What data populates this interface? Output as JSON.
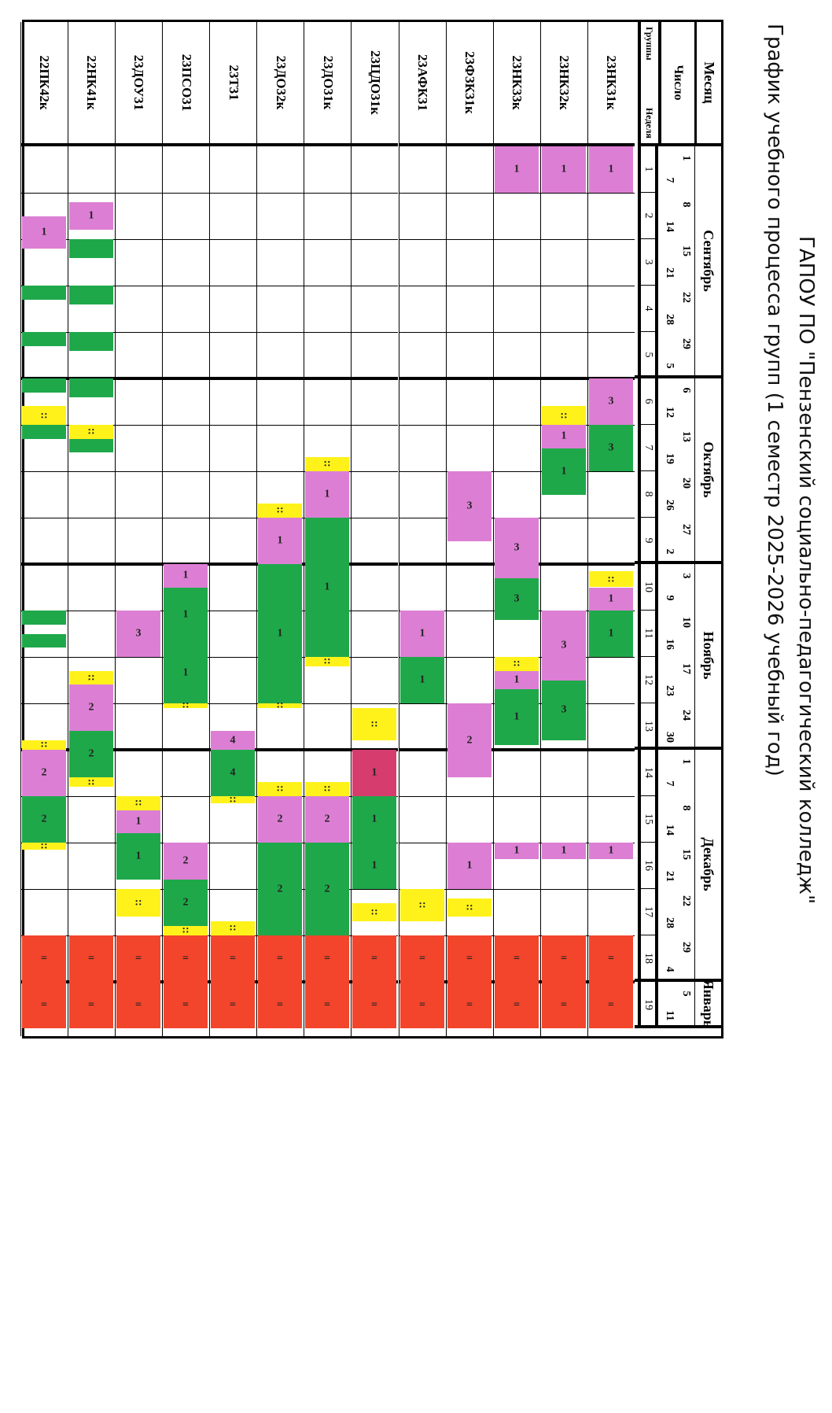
{
  "header": {
    "line1": "ГАПОУ ПО \"Пензенский социально-педагогический колледж\"",
    "line2": "График учебного процесса групп (1 семестр 2025-2026 учебный год)"
  },
  "table": {
    "month_label": "Месяц",
    "date_label": "Число",
    "groups_label": "Группы",
    "week_label": "Неделя",
    "months": [
      {
        "name": "Сентябрь",
        "from_week": 1,
        "to_week": 5
      },
      {
        "name": "Октябрь",
        "from_week": 6,
        "to_week": 9
      },
      {
        "name": "Ноябрь",
        "from_week": 10,
        "to_week": 13
      },
      {
        "name": "Декабрь",
        "from_week": 14,
        "to_week": 18
      },
      {
        "name": "Январь",
        "from_week": 19,
        "to_week": 19
      }
    ],
    "week_starts": [
      "1",
      "8",
      "15",
      "22",
      "29",
      "6",
      "13",
      "20",
      "27",
      "3",
      "10",
      "17",
      "24",
      "1",
      "8",
      "15",
      "22",
      "29",
      "5"
    ],
    "week_ends": [
      "7",
      "14",
      "21",
      "28",
      "5",
      "12",
      "19",
      "26",
      "2",
      "9",
      "16",
      "23",
      "30",
      "7",
      "14",
      "21",
      "28",
      "4",
      "11"
    ],
    "weeks": [
      "1",
      "2",
      "3",
      "4",
      "5",
      "6",
      "7",
      "8",
      "9",
      "10",
      "11",
      "12",
      "13",
      "14",
      "15",
      "16",
      "17",
      "18",
      "19"
    ]
  },
  "legend_colors": {
    "pink": "#dc7fd4",
    "green": "#1fa84a",
    "yellow": "#fff21a",
    "red": "#f2452c",
    "crimson": "#d63d6e"
  },
  "groups": [
    {
      "name": "23НК31к",
      "segments": [
        {
          "from": 1,
          "to": 2,
          "color": "pink",
          "text": "1"
        },
        {
          "from": 6,
          "to": 7,
          "color": "pink",
          "text": "3"
        },
        {
          "from": 7,
          "to": 8,
          "color": "green",
          "text": "3"
        },
        {
          "from": 10.15,
          "to": 10.5,
          "color": "yellow",
          "text": "::"
        },
        {
          "from": 10.5,
          "to": 11,
          "color": "pink",
          "text": "1"
        },
        {
          "from": 11,
          "to": 12,
          "color": "green",
          "text": "1"
        },
        {
          "from": 16,
          "to": 16.35,
          "color": "pink",
          "text": "1"
        },
        {
          "from": 18,
          "to": 19,
          "color": "red",
          "text": "="
        },
        {
          "from": 19,
          "to": 20,
          "color": "red",
          "text": "="
        }
      ]
    },
    {
      "name": "23НК32к",
      "segments": [
        {
          "from": 1,
          "to": 2,
          "color": "pink",
          "text": "1"
        },
        {
          "from": 6.6,
          "to": 7,
          "color": "yellow",
          "text": "::"
        },
        {
          "from": 7,
          "to": 7.5,
          "color": "pink",
          "text": "1"
        },
        {
          "from": 7.5,
          "to": 8.5,
          "color": "green",
          "text": "1"
        },
        {
          "from": 11,
          "to": 12.5,
          "color": "pink",
          "text": "3"
        },
        {
          "from": 12.5,
          "to": 13.8,
          "color": "green",
          "text": "3"
        },
        {
          "from": 16,
          "to": 16.35,
          "color": "pink",
          "text": "1"
        },
        {
          "from": 18,
          "to": 19,
          "color": "red",
          "text": "="
        },
        {
          "from": 19,
          "to": 20,
          "color": "red",
          "text": "="
        }
      ]
    },
    {
      "name": "23НК33к",
      "segments": [
        {
          "from": 1,
          "to": 2,
          "color": "pink",
          "text": "1"
        },
        {
          "from": 9,
          "to": 10.3,
          "color": "pink",
          "text": "3"
        },
        {
          "from": 10.3,
          "to": 11.2,
          "color": "green",
          "text": "3"
        },
        {
          "from": 12,
          "to": 12.3,
          "color": "yellow",
          "text": "::"
        },
        {
          "from": 12.3,
          "to": 12.7,
          "color": "pink",
          "text": "1"
        },
        {
          "from": 12.7,
          "to": 13.9,
          "color": "green",
          "text": "1"
        },
        {
          "from": 16,
          "to": 16.35,
          "color": "pink",
          "text": "1"
        },
        {
          "from": 18,
          "to": 19,
          "color": "red",
          "text": "="
        },
        {
          "from": 19,
          "to": 20,
          "color": "red",
          "text": "="
        }
      ]
    },
    {
      "name": "23ФЗК31к",
      "segments": [
        {
          "from": 8,
          "to": 9.5,
          "color": "pink",
          "text": "3"
        },
        {
          "from": 13,
          "to": 14.6,
          "color": "pink",
          "text": "2"
        },
        {
          "from": 16,
          "to": 17,
          "color": "pink",
          "text": "1"
        },
        {
          "from": 17.2,
          "to": 17.6,
          "color": "yellow",
          "text": "::"
        },
        {
          "from": 18,
          "to": 19,
          "color": "red",
          "text": "="
        },
        {
          "from": 19,
          "to": 20,
          "color": "red",
          "text": "="
        }
      ]
    },
    {
      "name": "23АФК31",
      "segments": [
        {
          "from": 11,
          "to": 12,
          "color": "pink",
          "text": "1"
        },
        {
          "from": 12,
          "to": 13,
          "color": "green",
          "text": "1"
        },
        {
          "from": 17,
          "to": 17.7,
          "color": "yellow",
          "text": "::"
        },
        {
          "from": 18,
          "to": 19,
          "color": "red",
          "text": "="
        },
        {
          "from": 19,
          "to": 20,
          "color": "red",
          "text": "="
        }
      ]
    },
    {
      "name": "23ЦДО31к",
      "segments": [
        {
          "from": 13.1,
          "to": 13.8,
          "color": "yellow",
          "text": "::"
        },
        {
          "from": 14,
          "to": 15,
          "color": "crimson",
          "text": "1"
        },
        {
          "from": 15,
          "to": 16,
          "color": "green",
          "text": "1"
        },
        {
          "from": 16,
          "to": 17,
          "color": "green",
          "text": "1"
        },
        {
          "from": 17.3,
          "to": 17.7,
          "color": "yellow",
          "text": "::"
        },
        {
          "from": 18,
          "to": 19,
          "color": "red",
          "text": "="
        },
        {
          "from": 19,
          "to": 20,
          "color": "red",
          "text": "="
        }
      ]
    },
    {
      "name": "23ДО31к",
      "segments": [
        {
          "from": 7.7,
          "to": 8,
          "color": "yellow",
          "text": "::"
        },
        {
          "from": 8,
          "to": 9,
          "color": "pink",
          "text": "1"
        },
        {
          "from": 9,
          "to": 12,
          "color": "green",
          "text": "1"
        },
        {
          "from": 12,
          "to": 12.2,
          "color": "yellow",
          "text": "::"
        },
        {
          "from": 14.7,
          "to": 15,
          "color": "yellow",
          "text": "::"
        },
        {
          "from": 15,
          "to": 16,
          "color": "pink",
          "text": "2"
        },
        {
          "from": 16,
          "to": 18,
          "color": "green",
          "text": "2"
        },
        {
          "from": 18,
          "to": 19,
          "color": "red",
          "text": "="
        },
        {
          "from": 19,
          "to": 20,
          "color": "red",
          "text": "="
        }
      ]
    },
    {
      "name": "23ДО32к",
      "segments": [
        {
          "from": 8.7,
          "to": 9,
          "color": "yellow",
          "text": "::"
        },
        {
          "from": 9,
          "to": 10,
          "color": "pink",
          "text": "1"
        },
        {
          "from": 10,
          "to": 13,
          "color": "green",
          "text": "1"
        },
        {
          "from": 13,
          "to": 13.1,
          "color": "yellow",
          "text": "::"
        },
        {
          "from": 14.7,
          "to": 15,
          "color": "yellow",
          "text": "::"
        },
        {
          "from": 15,
          "to": 16,
          "color": "pink",
          "text": "2"
        },
        {
          "from": 16,
          "to": 18,
          "color": "green",
          "text": "2"
        },
        {
          "from": 18,
          "to": 19,
          "color": "red",
          "text": "="
        },
        {
          "from": 19,
          "to": 20,
          "color": "red",
          "text": "="
        }
      ]
    },
    {
      "name": "23Т31",
      "segments": [
        {
          "from": 13.6,
          "to": 14,
          "color": "pink",
          "text": "4"
        },
        {
          "from": 14,
          "to": 15,
          "color": "green",
          "text": "4"
        },
        {
          "from": 15,
          "to": 15.15,
          "color": "yellow",
          "text": "::"
        },
        {
          "from": 17.7,
          "to": 18,
          "color": "yellow",
          "text": "::"
        },
        {
          "from": 18,
          "to": 19,
          "color": "red",
          "text": "="
        },
        {
          "from": 19,
          "to": 20,
          "color": "red",
          "text": "="
        }
      ]
    },
    {
      "name": "23ПСО31",
      "segments": [
        {
          "from": 10,
          "to": 10.5,
          "color": "pink",
          "text": "1"
        },
        {
          "from": 10.5,
          "to": 11.7,
          "color": "green",
          "text": "1"
        },
        {
          "from": 11.7,
          "to": 13,
          "color": "green",
          "text": "1"
        },
        {
          "from": 13,
          "to": 13.1,
          "color": "yellow",
          "text": "::"
        },
        {
          "from": 16,
          "to": 16.8,
          "color": "pink",
          "text": "2"
        },
        {
          "from": 16.8,
          "to": 17.8,
          "color": "green",
          "text": "2"
        },
        {
          "from": 17.8,
          "to": 18,
          "color": "yellow",
          "text": "::"
        },
        {
          "from": 18,
          "to": 19,
          "color": "red",
          "text": "="
        },
        {
          "from": 19,
          "to": 20,
          "color": "red",
          "text": "="
        }
      ]
    },
    {
      "name": "23ДОУ31",
      "segments": [
        {
          "from": 11,
          "to": 12,
          "color": "pink",
          "text": "3"
        },
        {
          "from": 15,
          "to": 15.3,
          "color": "yellow",
          "text": "::"
        },
        {
          "from": 15.3,
          "to": 15.8,
          "color": "pink",
          "text": "1"
        },
        {
          "from": 15.8,
          "to": 16.8,
          "color": "green",
          "text": "1"
        },
        {
          "from": 17,
          "to": 17.6,
          "color": "yellow",
          "text": "::"
        },
        {
          "from": 18,
          "to": 19,
          "color": "red",
          "text": "="
        },
        {
          "from": 19,
          "to": 20,
          "color": "red",
          "text": "="
        }
      ]
    },
    {
      "name": "22НК41к",
      "segments": [
        {
          "from": 2.2,
          "to": 2.8,
          "color": "pink",
          "text": "1"
        },
        {
          "from": 3,
          "to": 3.4,
          "color": "green",
          "text": ""
        },
        {
          "from": 4,
          "to": 4.4,
          "color": "green",
          "text": ""
        },
        {
          "from": 5,
          "to": 5.4,
          "color": "green",
          "text": ""
        },
        {
          "from": 6,
          "to": 6.4,
          "color": "green",
          "text": ""
        },
        {
          "from": 7,
          "to": 7.3,
          "color": "yellow",
          "text": "::"
        },
        {
          "from": 7.3,
          "to": 7.6,
          "color": "green",
          "text": ""
        },
        {
          "from": 12.3,
          "to": 12.6,
          "color": "yellow",
          "text": "::"
        },
        {
          "from": 12.6,
          "to": 13.6,
          "color": "pink",
          "text": "2"
        },
        {
          "from": 13.6,
          "to": 14.6,
          "color": "green",
          "text": "2"
        },
        {
          "from": 14.6,
          "to": 14.8,
          "color": "yellow",
          "text": "::"
        },
        {
          "from": 18,
          "to": 19,
          "color": "red",
          "text": "="
        },
        {
          "from": 19,
          "to": 20,
          "color": "red",
          "text": "="
        }
      ]
    },
    {
      "name": "22ПК42к",
      "segments": [
        {
          "from": 2.5,
          "to": 3.2,
          "color": "pink",
          "text": "1"
        },
        {
          "from": 4,
          "to": 4.3,
          "color": "green",
          "text": ""
        },
        {
          "from": 5,
          "to": 5.3,
          "color": "green",
          "text": ""
        },
        {
          "from": 6,
          "to": 6.3,
          "color": "green",
          "text": ""
        },
        {
          "from": 6.6,
          "to": 7,
          "color": "yellow",
          "text": "::"
        },
        {
          "from": 7,
          "to": 7.3,
          "color": "green",
          "text": ""
        },
        {
          "from": 11,
          "to": 11.3,
          "color": "green",
          "text": ""
        },
        {
          "from": 11.5,
          "to": 11.8,
          "color": "green",
          "text": ""
        },
        {
          "from": 13.8,
          "to": 14,
          "color": "yellow",
          "text": "::"
        },
        {
          "from": 14,
          "to": 15,
          "color": "pink",
          "text": "2"
        },
        {
          "from": 15,
          "to": 16,
          "color": "green",
          "text": "2"
        },
        {
          "from": 16,
          "to": 16.15,
          "color": "yellow",
          "text": "::"
        },
        {
          "from": 18,
          "to": 19,
          "color": "red",
          "text": "="
        },
        {
          "from": 19,
          "to": 20,
          "color": "red",
          "text": "="
        }
      ]
    }
  ]
}
